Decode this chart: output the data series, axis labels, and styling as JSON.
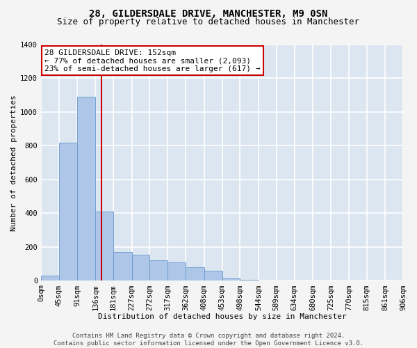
{
  "title": "28, GILDERSDALE DRIVE, MANCHESTER, M9 0SN",
  "subtitle": "Size of property relative to detached houses in Manchester",
  "xlabel": "Distribution of detached houses by size in Manchester",
  "ylabel": "Number of detached properties",
  "annotation_lines": [
    "28 GILDERSDALE DRIVE: 152sqm",
    "← 77% of detached houses are smaller (2,093)",
    "23% of semi-detached houses are larger (617) →"
  ],
  "footer_lines": [
    "Contains HM Land Registry data © Crown copyright and database right 2024.",
    "Contains public sector information licensed under the Open Government Licence v3.0."
  ],
  "bar_color": "#aec6e8",
  "bar_edge_color": "#6699cc",
  "background_color": "#dce6f1",
  "fig_background_color": "#f4f4f4",
  "grid_color": "#ffffff",
  "vline_color": "#cc0000",
  "vline_x": 152,
  "bin_edges": [
    0,
    45,
    91,
    136,
    181,
    227,
    272,
    317,
    362,
    408,
    453,
    498,
    544,
    589,
    634,
    680,
    725,
    770,
    815,
    861,
    906
  ],
  "bin_labels": [
    "0sqm",
    "45sqm",
    "91sqm",
    "136sqm",
    "181sqm",
    "227sqm",
    "272sqm",
    "317sqm",
    "362sqm",
    "408sqm",
    "453sqm",
    "498sqm",
    "544sqm",
    "589sqm",
    "634sqm",
    "680sqm",
    "725sqm",
    "770sqm",
    "815sqm",
    "861sqm",
    "906sqm"
  ],
  "counts": [
    30,
    820,
    1090,
    410,
    170,
    155,
    120,
    110,
    80,
    60,
    15,
    5,
    0,
    0,
    0,
    0,
    0,
    0,
    0,
    0
  ],
  "ylim": [
    0,
    1400
  ],
  "yticks": [
    0,
    200,
    400,
    600,
    800,
    1000,
    1200,
    1400
  ],
  "annotation_box_color": "#ffffff",
  "annotation_box_edge": "#cc0000",
  "title_fontsize": 10,
  "subtitle_fontsize": 9,
  "axis_label_fontsize": 8,
  "tick_fontsize": 7.5,
  "annotation_fontsize": 8,
  "footer_fontsize": 6.5
}
